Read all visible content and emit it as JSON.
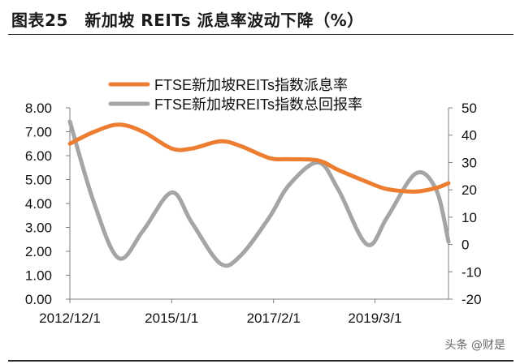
{
  "figure_title": "图表25　新加坡 REITs 派息率波动下降（%）",
  "watermark": "头条 @财是",
  "chart_data": {
    "type": "line",
    "title": "",
    "x_tick_labels": [
      "2012/12/1",
      "2015/1/1",
      "2017/2/1",
      "2019/3/1"
    ],
    "x_tick_dates": [
      "2012-12-01",
      "2015-01-01",
      "2017-02-01",
      "2019-03-01"
    ],
    "x_range": [
      "2012-12-01",
      "2020-09-01"
    ],
    "left_axis": {
      "min": 0,
      "max": 8,
      "step": 1,
      "tick_labels": [
        "0.00",
        "1.00",
        "2.00",
        "3.00",
        "4.00",
        "5.00",
        "6.00",
        "7.00",
        "8.00"
      ]
    },
    "right_axis": {
      "min": -20,
      "max": 50,
      "step": 10,
      "tick_labels": [
        "-20",
        "-10",
        "0",
        "10",
        "20",
        "30",
        "40",
        "50"
      ]
    },
    "legend_position": "top",
    "grid": false,
    "series": [
      {
        "name": "FTSE新加坡REITs指数派息率",
        "axis": "left",
        "color": "#ED7D31",
        "points": [
          [
            "2012-12-01",
            6.5
          ],
          [
            "2013-06-01",
            7.0
          ],
          [
            "2013-12-01",
            7.3
          ],
          [
            "2014-06-01",
            7.0
          ],
          [
            "2015-01-01",
            6.3
          ],
          [
            "2015-06-01",
            6.3
          ],
          [
            "2016-01-01",
            6.6
          ],
          [
            "2016-06-01",
            6.4
          ],
          [
            "2017-01-01",
            5.9
          ],
          [
            "2017-06-01",
            5.85
          ],
          [
            "2018-01-01",
            5.8
          ],
          [
            "2018-06-01",
            5.4
          ],
          [
            "2019-01-01",
            4.9
          ],
          [
            "2019-06-01",
            4.6
          ],
          [
            "2020-01-01",
            4.5
          ],
          [
            "2020-06-01",
            4.65
          ],
          [
            "2020-09-01",
            4.85
          ]
        ]
      },
      {
        "name": "FTSE新加坡REITs指数总回报率",
        "axis": "right",
        "color": "#A5A5A5",
        "points": [
          [
            "2012-12-01",
            45
          ],
          [
            "2013-06-01",
            15
          ],
          [
            "2013-12-01",
            -5
          ],
          [
            "2014-06-01",
            5
          ],
          [
            "2015-01-01",
            19
          ],
          [
            "2015-06-01",
            8
          ],
          [
            "2016-01-01",
            -7
          ],
          [
            "2016-06-01",
            -4
          ],
          [
            "2017-01-01",
            10
          ],
          [
            "2017-06-01",
            22
          ],
          [
            "2018-01-01",
            30
          ],
          [
            "2018-06-01",
            20
          ],
          [
            "2019-01-01",
            0
          ],
          [
            "2019-06-01",
            10
          ],
          [
            "2020-01-01",
            26
          ],
          [
            "2020-06-01",
            20
          ],
          [
            "2020-09-01",
            1
          ]
        ]
      }
    ]
  }
}
